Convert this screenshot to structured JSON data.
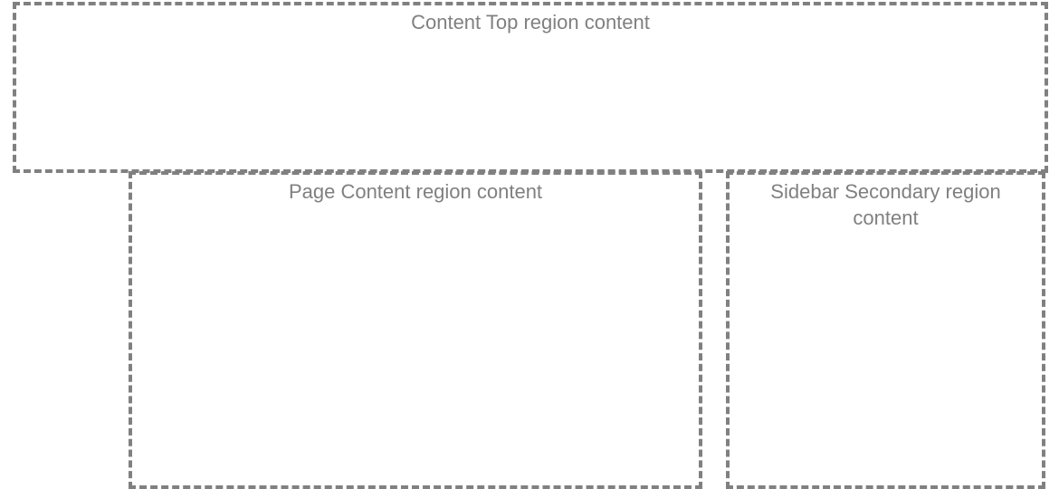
{
  "regions": {
    "content_top": {
      "label": "Content Top region content"
    },
    "page_content": {
      "label": "Page Content region content"
    },
    "sidebar_secondary": {
      "label": "Sidebar Secondary region content"
    }
  },
  "colors": {
    "border": "#808080",
    "text": "#808080",
    "background": "#ffffff"
  }
}
